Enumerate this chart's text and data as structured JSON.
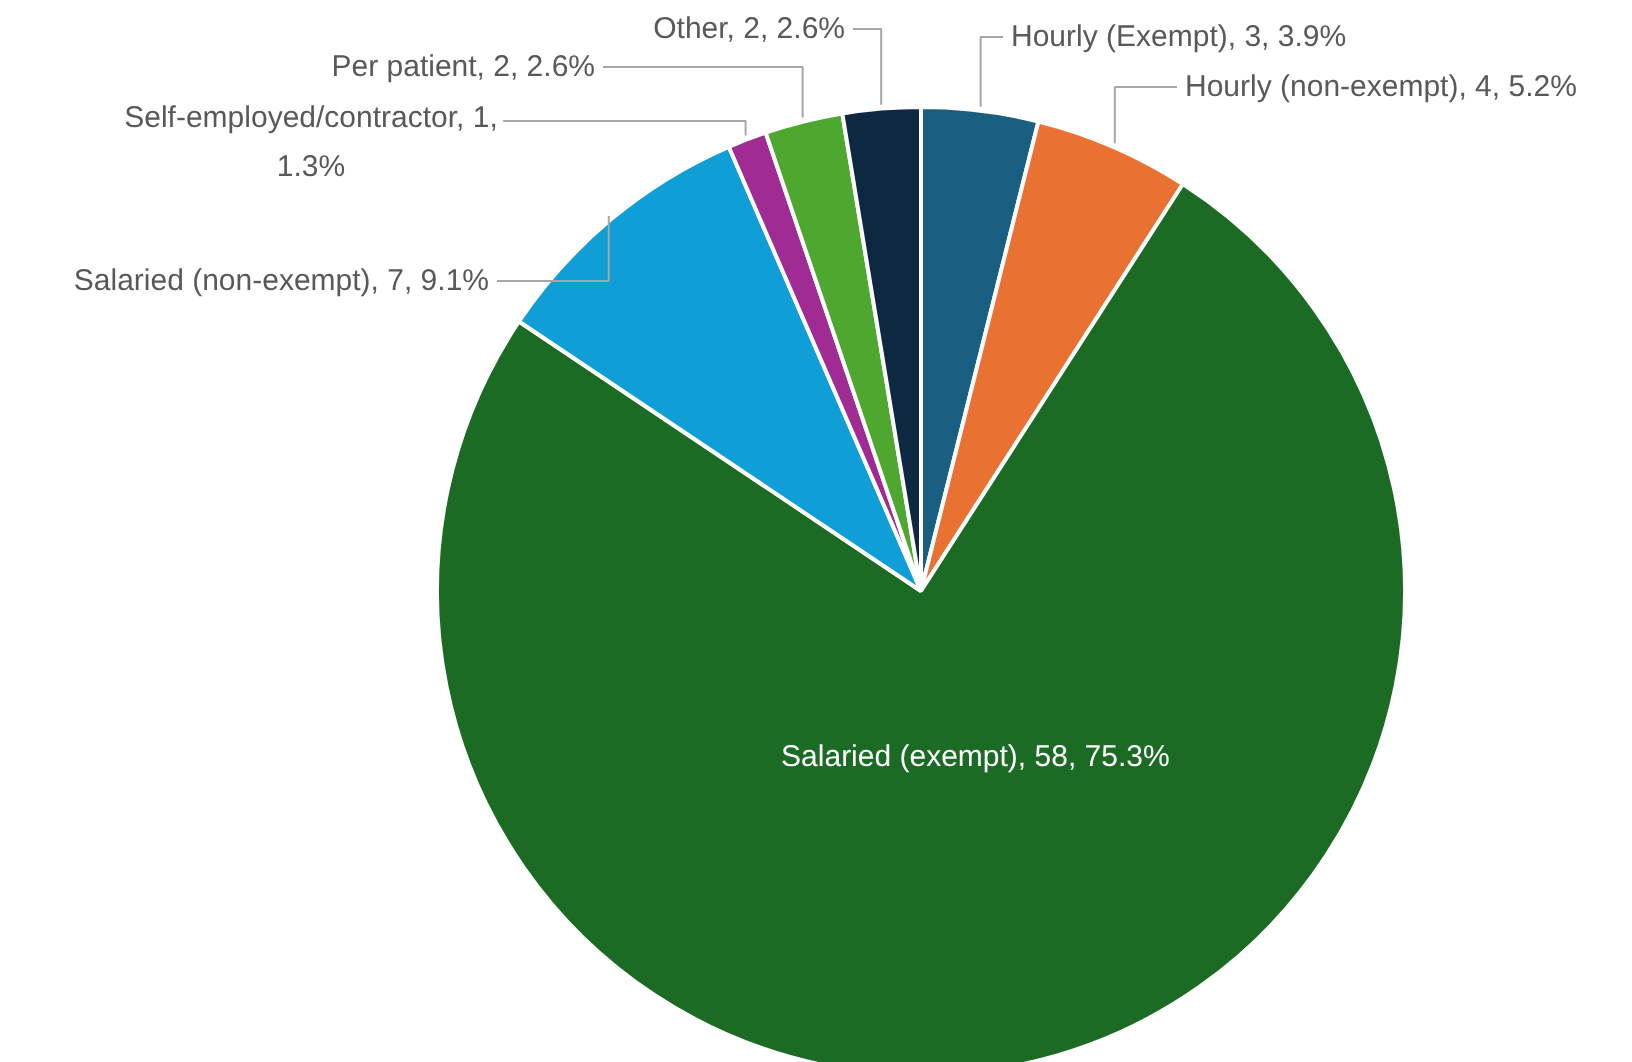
{
  "chart_data": {
    "type": "pie",
    "categories": [
      "Hourly (Exempt)",
      "Hourly (non-exempt)",
      "Salaried (exempt)",
      "Salaried (non-exempt)",
      "Self-employed/contractor",
      "Per patient",
      "Other"
    ],
    "values": [
      3.9,
      5.2,
      75.3,
      9.1,
      1.3,
      2.6,
      2.6
    ],
    "colors": [
      "#1a5e82",
      "#e97132",
      "#1b6b25",
      "#0f9ed5",
      "#a02b93",
      "#4ea72e",
      "#0e2841"
    ],
    "value_labels": [
      "3, 3.9%",
      "4, 5.2%",
      "58, 75.3%",
      "7, 9.1%",
      "1, 1.3%",
      "2, 2.6%",
      "2, 2.6%"
    ]
  }
}
